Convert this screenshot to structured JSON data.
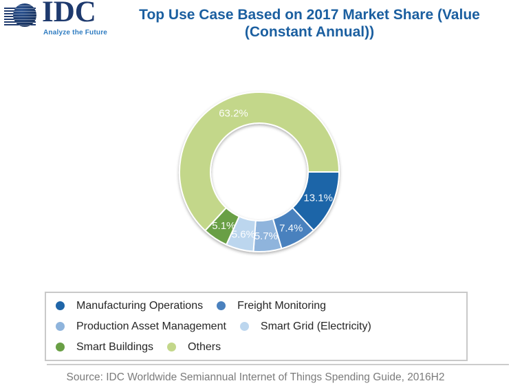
{
  "logo": {
    "brand": "IDC",
    "tagline": "Analyze the Future"
  },
  "title": {
    "line1": "Top Use Case Based on 2017 Market Share (Value",
    "line2": "(Constant Annual))"
  },
  "source": "Source: IDC Worldwide Semiannual Internet of Things Spending Guide, 2016H2",
  "colors": {
    "title_text": "#1B5FA0",
    "logo_navy": "#1E3A6E",
    "logo_tagline_blue": "#2F7CC1",
    "legend_border": "#C9C9C9",
    "legend_text": "#262626",
    "source_text": "#7B7B7B",
    "slice_label_text": "#FFFFFF"
  },
  "chart_data": {
    "type": "pie",
    "subtype": "donut",
    "title": "Top Use Case Based on 2017 Market Share (Value (Constant Annual))",
    "unit": "%",
    "start_angle_clockwise_from_top_deg": 90,
    "legend_position": "bottom",
    "labels_on_slices": true,
    "segments": [
      {
        "label": "Manufacturing Operations",
        "value": 13.1,
        "display": "13.1%",
        "color": "#1F65A8"
      },
      {
        "label": "Freight Monitoring",
        "value": 7.4,
        "display": "7.4%",
        "color": "#4A81BE"
      },
      {
        "label": "Production Asset Management",
        "value": 5.7,
        "display": "5.7%",
        "color": "#8FB4DC"
      },
      {
        "label": "Smart Grid (Electricity)",
        "value": 5.6,
        "display": "5.6%",
        "color": "#BCD6EE"
      },
      {
        "label": "Smart Buildings",
        "value": 5.1,
        "display": "5.1%",
        "color": "#699F45"
      },
      {
        "label": "Others",
        "value": 63.2,
        "display": "63.2%",
        "color": "#C3D78A"
      }
    ]
  }
}
